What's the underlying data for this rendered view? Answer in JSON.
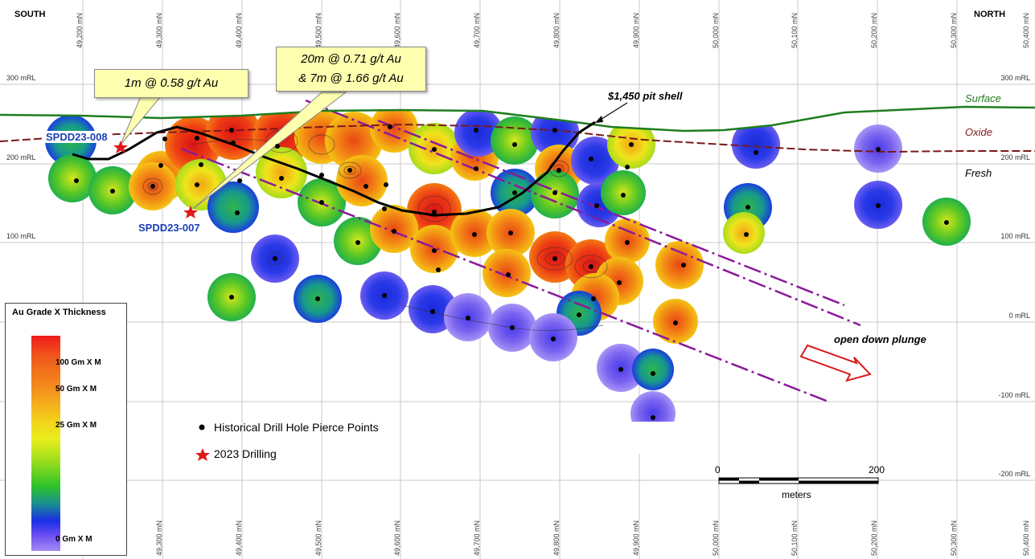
{
  "header": {
    "south": "SOUTH",
    "north": "NORTH"
  },
  "northings_top": [
    "49,200 mN",
    "49,300 mN",
    "49,400 mN",
    "49,500 mN",
    "49,600 mN",
    "49,700 mN",
    "49,800 mN",
    "49,900 mN",
    "50,000 mN",
    "50,100 mN",
    "50,200 mN",
    "50,300 mN",
    "50,400 mN"
  ],
  "northings_bottom": [
    "49,300 mN",
    "49,400 mN",
    "49,500 mN",
    "49,600 mN",
    "49,700 mN",
    "49,800 mN",
    "49,900 mN",
    "50,000 mN",
    "50,100 mN",
    "50,200 mN",
    "50,300 mN",
    "50,400 mN"
  ],
  "rl_labels_left": [
    "300 mRL",
    "200 mRL",
    "100 mRL"
  ],
  "rl_labels_right": [
    "300 mRL",
    "200 mRL",
    "100 mRL",
    "0 mRL",
    "-100 mRL",
    "-200 mRL"
  ],
  "surfaces": {
    "surface": "Surface",
    "oxide": "Oxide",
    "fresh": "Fresh",
    "pit_shell": "$1,450 pit shell"
  },
  "callouts": {
    "c1": "1m @ 0.58 g/t Au",
    "c2_line1": "20m @ 0.71 g/t Au",
    "c2_line2": "& 7m @ 1.66 g/t Au"
  },
  "holes": {
    "h008": "SPDD23-008",
    "h007": "SPDD23-007"
  },
  "plunge": "open down plunge",
  "legend": {
    "title": "Au Grade X Thickness",
    "ticks": [
      "100  Gm X M",
      "50  Gm X M",
      "25  Gm X M",
      "0  Gm X M"
    ]
  },
  "key": {
    "historical": "Historical Drill Hole Pierce Points",
    "drilling": "2023 Drilling"
  },
  "scale": {
    "start": "0",
    "end": "200",
    "unit": "meters"
  },
  "colors": {
    "surface": "#1e7d1e",
    "oxide": "#7a1a1a",
    "pit": "#000000",
    "structure": "#8b1a9a",
    "hole_label": "#1c3fb8",
    "star": "#e01818"
  }
}
